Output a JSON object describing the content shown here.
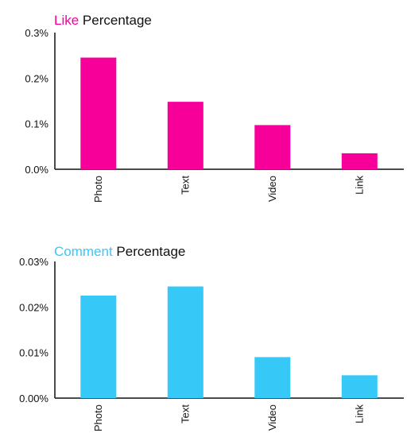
{
  "chart_data": [
    {
      "type": "bar",
      "title_highlight": "Like",
      "title_rest": " Percentage",
      "color": "#f7009a",
      "categories": [
        "Photo",
        "Text",
        "Video",
        "Link"
      ],
      "values": [
        0.245,
        0.148,
        0.097,
        0.035
      ],
      "ylim": [
        0,
        0.3
      ],
      "yticks": [
        "0.0%",
        "0.1%",
        "0.2%",
        "0.3%"
      ],
      "ytick_values": [
        0,
        0.1,
        0.2,
        0.3
      ],
      "grid": false
    },
    {
      "type": "bar",
      "title_highlight": "Comment",
      "title_rest": " Percentage",
      "color": "#36c9f7",
      "categories": [
        "Photo",
        "Text",
        "Video",
        "Link"
      ],
      "values": [
        0.0225,
        0.0245,
        0.009,
        0.005
      ],
      "ylim": [
        0,
        0.03
      ],
      "yticks": [
        "0.00%",
        "0.01%",
        "0.02%",
        "0.03%"
      ],
      "ytick_values": [
        0,
        0.01,
        0.02,
        0.03
      ],
      "grid": false
    }
  ]
}
